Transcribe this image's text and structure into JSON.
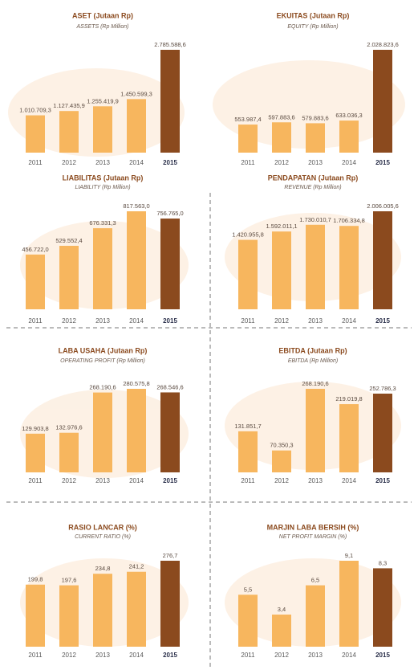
{
  "chart_data": [
    {
      "type": "bar",
      "title": "ASET (Jutaan Rp)",
      "subtitle": "ASSETS (Rp Million)",
      "categories": [
        "2011",
        "2012",
        "2013",
        "2014",
        "2015"
      ],
      "values": [
        1010709.3,
        1127435.9,
        1255419.9,
        1450599.3,
        2785588.6
      ],
      "value_labels": [
        "1.010.709,3",
        "1.127.435,9",
        "1.255.419,9",
        "1.450.599,3",
        "2.785.588,6"
      ],
      "colors": [
        "#f7b65e",
        "#f7b65e",
        "#f7b65e",
        "#f7b65e",
        "#8b4a1e"
      ]
    },
    {
      "type": "bar",
      "title": "EKUITAS (Jutaan Rp)",
      "subtitle": "EQUITY (Rp Million)",
      "categories": [
        "2011",
        "2012",
        "2013",
        "2014",
        "2015"
      ],
      "values": [
        553987.4,
        597883.6,
        579883.6,
        633036.3,
        2028823.6
      ],
      "value_labels": [
        "553.987,4",
        "597.883,6",
        "579.883,6",
        "633.036,3",
        "2.028.823,6"
      ],
      "colors": [
        "#f7b65e",
        "#f7b65e",
        "#f7b65e",
        "#f7b65e",
        "#8b4a1e"
      ]
    },
    {
      "type": "bar",
      "title": "LIABILITAS (Jutaan Rp)",
      "subtitle": "LIABILITY (Rp Million)",
      "categories": [
        "2011",
        "2012",
        "2013",
        "2014",
        "2015"
      ],
      "values": [
        456722.0,
        529552.4,
        676331.3,
        817563.0,
        756765.0
      ],
      "value_labels": [
        "456.722,0",
        "529.552,4",
        "676.331,3",
        "817.563,0",
        "756.765,0"
      ],
      "colors": [
        "#f7b65e",
        "#f7b65e",
        "#f7b65e",
        "#f7b65e",
        "#8b4a1e"
      ]
    },
    {
      "type": "bar",
      "title": "PENDAPATAN (Jutaan Rp)",
      "subtitle": "REVENUE (Rp Million)",
      "categories": [
        "2011",
        "2012",
        "2013",
        "2014",
        "2015"
      ],
      "values": [
        1420955.8,
        1592011.1,
        1730010.7,
        1706334.8,
        2006005.6
      ],
      "value_labels": [
        "1.420.955,8",
        "1.592.011,1",
        "1.730.010,7",
        "1.706.334,8",
        "2.006.005,6"
      ],
      "colors": [
        "#f7b65e",
        "#f7b65e",
        "#f7b65e",
        "#f7b65e",
        "#8b4a1e"
      ]
    },
    {
      "type": "bar",
      "title": "LABA USAHA (Jutaan Rp)",
      "subtitle": "OPERATING PROFIT (Rp Million)",
      "categories": [
        "2011",
        "2012",
        "2013",
        "2014",
        "2015"
      ],
      "values": [
        129903.8,
        132976.6,
        268190.6,
        280575.8,
        268546.6
      ],
      "value_labels": [
        "129.903,8",
        "132.976,6",
        "268.190,6",
        "280.575,8",
        "268.546,6"
      ],
      "colors": [
        "#f7b65e",
        "#f7b65e",
        "#f7b65e",
        "#f7b65e",
        "#8b4a1e"
      ]
    },
    {
      "type": "bar",
      "title": "EBITDA (Jutaan Rp)",
      "subtitle": "EBITDA (Rp Million)",
      "categories": [
        "2011",
        "2012",
        "2013",
        "2014",
        "2015"
      ],
      "values": [
        131851.7,
        70350.3,
        268190.6,
        219019.8,
        252786.3
      ],
      "value_labels": [
        "131.851,7",
        "70.350,3",
        "268.190,6",
        "219.019,8",
        "252.786,3"
      ],
      "colors": [
        "#f7b65e",
        "#f7b65e",
        "#f7b65e",
        "#f7b65e",
        "#8b4a1e"
      ]
    },
    {
      "type": "bar",
      "title": "RASIO LANCAR (%)",
      "subtitle": "CURRENT RATIO (%)",
      "categories": [
        "2011",
        "2012",
        "2013",
        "2014",
        "2015"
      ],
      "values": [
        199.8,
        197.6,
        234.8,
        241.2,
        276.7
      ],
      "value_labels": [
        "199,8",
        "197,6",
        "234,8",
        "241,2",
        "276,7"
      ],
      "colors": [
        "#f7b65e",
        "#f7b65e",
        "#f7b65e",
        "#f7b65e",
        "#8b4a1e"
      ]
    },
    {
      "type": "bar",
      "title": "MARJIN LABA BERSIH (%)",
      "subtitle": "NET PROFIT MARGIN (%)",
      "categories": [
        "2011",
        "2012",
        "2013",
        "2014",
        "2015"
      ],
      "values": [
        5.5,
        3.4,
        6.5,
        9.1,
        8.3
      ],
      "value_labels": [
        "5,5",
        "3,4",
        "6,5",
        "9,1",
        "8,3"
      ],
      "colors": [
        "#f7b65e",
        "#f7b65e",
        "#f7b65e",
        "#f7b65e",
        "#8b4a1e"
      ]
    }
  ]
}
